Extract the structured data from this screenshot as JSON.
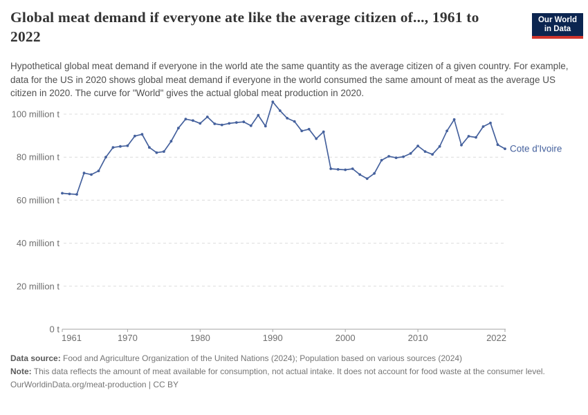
{
  "header": {
    "title": "Global meat demand if everyone ate like the average citizen of..., 1961 to 2022",
    "subtitle": "Hypothetical global meat demand if everyone in the world ate the same quantity as the average citizen of a given country. For example, data for the US in 2020 shows global meat demand if everyone in the world consumed the same amount of meat as the average US citizen in 2020. The curve for \"World\" gives the actual global meat production in 2020."
  },
  "logo": {
    "line1": "Our World",
    "line2": "in Data",
    "bg_color": "#0c2550",
    "accent_color": "#d0342c"
  },
  "chart_data": {
    "type": "line",
    "title": "Global meat demand if everyone ate like the average citizen of..., 1961 to 2022",
    "xlabel": "",
    "ylabel": "",
    "unit": "million t",
    "ylim": [
      0,
      112
    ],
    "grid": "horizontal dashed",
    "legend_position": "right-of-line-end",
    "entity_label": "Cote d'Ivoire",
    "line_color": "#45619d",
    "axis_text_color": "#6e6e6e",
    "gridline_color": "#dcdcdc",
    "axis_line_color": "#a3a3a3",
    "y_ticks": [
      0,
      20,
      40,
      60,
      80,
      100
    ],
    "y_tick_labels": [
      "0 t",
      "20 million t",
      "40 million t",
      "60 million t",
      "80 million t",
      "100 million t"
    ],
    "x_ticks": [
      1961,
      1970,
      1980,
      1990,
      2000,
      2010,
      2022
    ],
    "years": [
      1961,
      1962,
      1963,
      1964,
      1965,
      1966,
      1967,
      1968,
      1969,
      1970,
      1971,
      1972,
      1973,
      1974,
      1975,
      1976,
      1977,
      1978,
      1979,
      1980,
      1981,
      1982,
      1983,
      1984,
      1985,
      1986,
      1987,
      1988,
      1989,
      1990,
      1991,
      1992,
      1993,
      1994,
      1995,
      1996,
      1997,
      1998,
      1999,
      2000,
      2001,
      2002,
      2003,
      2004,
      2005,
      2006,
      2007,
      2008,
      2009,
      2010,
      2011,
      2012,
      2013,
      2014,
      2015,
      2016,
      2017,
      2018,
      2019,
      2020,
      2021,
      2022
    ],
    "series": [
      {
        "name": "Cote d'Ivoire",
        "values": [
          63.2,
          62.9,
          62.7,
          72.6,
          71.9,
          73.6,
          80.0,
          84.5,
          85.0,
          85.3,
          89.8,
          90.6,
          84.5,
          82.1,
          82.6,
          87.4,
          93.5,
          97.7,
          97.0,
          95.7,
          98.7,
          95.5,
          95.0,
          95.7,
          96.1,
          96.4,
          94.6,
          99.5,
          94.4,
          105.7,
          101.6,
          98.1,
          96.6,
          92.2,
          93.0,
          88.6,
          91.8,
          74.6,
          74.3,
          74.1,
          74.6,
          71.9,
          70.0,
          72.4,
          78.6,
          80.4,
          79.7,
          80.2,
          81.7,
          85.2,
          82.6,
          81.3,
          85.0,
          92.2,
          97.5,
          85.6,
          89.7,
          89.2,
          94.2,
          95.9,
          85.8,
          83.9
        ]
      }
    ]
  },
  "footer": {
    "data_source_label": "Data source:",
    "data_source_text": " Food and Agriculture Organization of the United Nations (2024); Population based on various sources (2024)",
    "note_label": "Note:",
    "note_text": " This data reflects the amount of meat available for consumption, not actual intake. It does not account for food waste at the consumer level.",
    "citation": "OurWorldinData.org/meat-production | CC BY"
  }
}
